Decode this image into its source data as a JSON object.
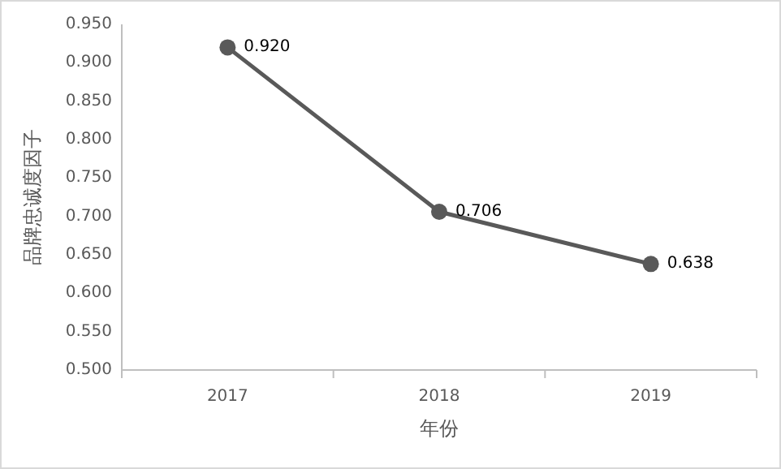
{
  "chart_data": {
    "type": "line",
    "xlabel": "年份",
    "ylabel": "品牌忠诚度因子",
    "categories": [
      "2017",
      "2018",
      "2019"
    ],
    "series": [
      {
        "color": "#595959",
        "values": [
          0.92,
          0.706,
          0.638
        ],
        "value_labels": [
          "0.920",
          "0.706",
          "0.638"
        ]
      }
    ],
    "ylim": [
      0.5,
      0.95
    ],
    "yticks": [
      {
        "value": 0.5,
        "label": "0.500"
      },
      {
        "value": 0.55,
        "label": "0.550"
      },
      {
        "value": 0.6,
        "label": "0.600"
      },
      {
        "value": 0.65,
        "label": "0.650"
      },
      {
        "value": 0.7,
        "label": "0.700"
      },
      {
        "value": 0.75,
        "label": "0.750"
      },
      {
        "value": 0.8,
        "label": "0.800"
      },
      {
        "value": 0.85,
        "label": "0.850"
      },
      {
        "value": 0.9,
        "label": "0.900"
      },
      {
        "value": 0.95,
        "label": "0.950"
      }
    ],
    "marker": "circle",
    "line_style": "solid",
    "grid": false
  }
}
